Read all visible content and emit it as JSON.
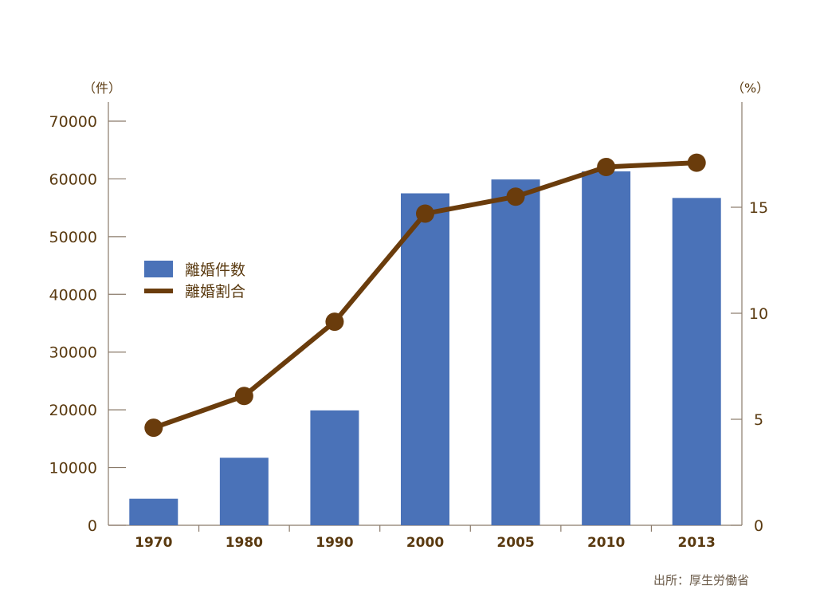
{
  "chart_data": {
    "type": "bar",
    "categories": [
      "1970",
      "1980",
      "1990",
      "2000",
      "2005",
      "2010",
      "2013"
    ],
    "series": [
      {
        "name": "離婚件数",
        "type": "bar",
        "axis": "left",
        "color": "#4a72b8",
        "values": [
          4600,
          11700,
          19900,
          57500,
          59900,
          61300,
          56700
        ]
      },
      {
        "name": "離婚割合",
        "type": "line",
        "axis": "right",
        "color": "#6a3c0c",
        "values": [
          4.6,
          6.1,
          9.6,
          14.7,
          15.5,
          16.9,
          17.1
        ]
      }
    ],
    "y_left": {
      "unit": "（件）",
      "ylim": [
        0,
        70000
      ],
      "ticks": [
        "0",
        "10000",
        "20000",
        "30000",
        "40000",
        "50000",
        "60000",
        "70000"
      ]
    },
    "y_right": {
      "unit": "（%）",
      "ylim": [
        0,
        20
      ],
      "ticks": [
        "0",
        "5",
        "10",
        "15"
      ]
    },
    "legend": {
      "placement": "left-middle"
    },
    "source": "出所：厚生労働省"
  }
}
